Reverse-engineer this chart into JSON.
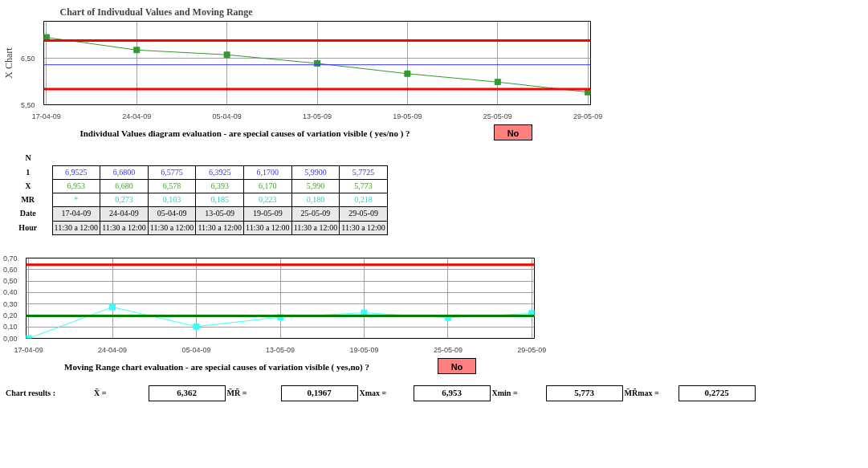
{
  "chart_data": [
    {
      "type": "line",
      "title": "Chart of Indivudual Values and Moving Range",
      "ylabel": "X Chart",
      "categories": [
        "17-04-09",
        "24-04-09",
        "05-04-09",
        "13-05-09",
        "19-05-09",
        "25-05-09",
        "29-05-09"
      ],
      "series": [
        {
          "color": "#339933",
          "values": [
            6.9525,
            6.68,
            6.5775,
            6.3925,
            6.17,
            5.99,
            5.7725
          ]
        }
      ],
      "ylim": [
        5.5,
        7.3
      ],
      "yticks": [
        {
          "value": 5.5,
          "label": "5,50"
        },
        {
          "value": 6.5,
          "label": "6,50"
        }
      ],
      "ref_lines": [
        {
          "axis": "y",
          "value": 6.885,
          "color": "#ff0000"
        },
        {
          "axis": "y",
          "value": 6.362,
          "color": "#3333ff"
        },
        {
          "axis": "y",
          "value": 5.839,
          "color": "#ff0000"
        }
      ],
      "grid": true,
      "marker": "square",
      "line_style": "solid",
      "annotations": [
        "Individual Values diagram evaluation - are special causes of variation visible ( yes/no ) ?",
        "No"
      ]
    },
    {
      "type": "other",
      "annotations": [
        "N",
        "1",
        "6,9525",
        "6,6800",
        "6,5775",
        "6,3925",
        "6,1700",
        "5,9900",
        "5,7725",
        "X",
        "6,953",
        "6,680",
        "6,578",
        "6,393",
        "6,170",
        "5,990",
        "5,773",
        "MR",
        "*",
        "0,273",
        "0,103",
        "0,185",
        "0,223",
        "0,180",
        "0,218",
        "Date",
        "17-04-09",
        "24-04-09",
        "05-04-09",
        "13-05-09",
        "19-05-09",
        "25-05-09",
        "29-05-09",
        "Hour",
        "11:30 a 12:00",
        "11:30 a 12:00",
        "11:30 a 12:00",
        "11:30 a 12:00",
        "11:30 a 12:00",
        "11:30 a 12:00",
        "11:30 a 12:00"
      ]
    },
    {
      "type": "line",
      "categories": [
        "17-04-09",
        "24-04-09",
        "05-04-09",
        "13-05-09",
        "19-05-09",
        "25-05-09",
        "29-05-09"
      ],
      "series": [
        {
          "color": "#33ffff",
          "values": [
            0,
            0.273,
            0.103,
            0.185,
            0.223,
            0.18,
            0.218
          ]
        }
      ],
      "ylim": [
        0,
        0.7
      ],
      "yticks": [
        {
          "value": 0,
          "label": "0,00"
        },
        {
          "value": 0.1,
          "label": "0,10"
        },
        {
          "value": 0.2,
          "label": "0,20"
        },
        {
          "value": 0.3,
          "label": "0,30"
        },
        {
          "value": 0.4,
          "label": "0,40"
        },
        {
          "value": 0.5,
          "label": "0,50"
        },
        {
          "value": 0.6,
          "label": "0,60"
        },
        {
          "value": 0.7,
          "label": "0,70"
        }
      ],
      "ref_lines": [
        {
          "axis": "y",
          "value": 0.643,
          "color": "#ff0000"
        },
        {
          "axis": "y",
          "value": 0.1967,
          "color": "#008000"
        }
      ],
      "grid": true,
      "marker": "square",
      "line_style": "solid",
      "annotations": [
        "Moving Range chart evaluation - are special causes of variation visible ( yes,no) ?",
        "No"
      ]
    },
    {
      "type": "other",
      "annotations": [
        "Chart results :",
        "X̄ =",
        "6,362",
        "M̄R̄ =",
        "0,1967",
        "Xmax =",
        "6,953",
        "Xmin =",
        "5,773",
        "M̄R̄max =",
        "0,2725"
      ]
    }
  ]
}
